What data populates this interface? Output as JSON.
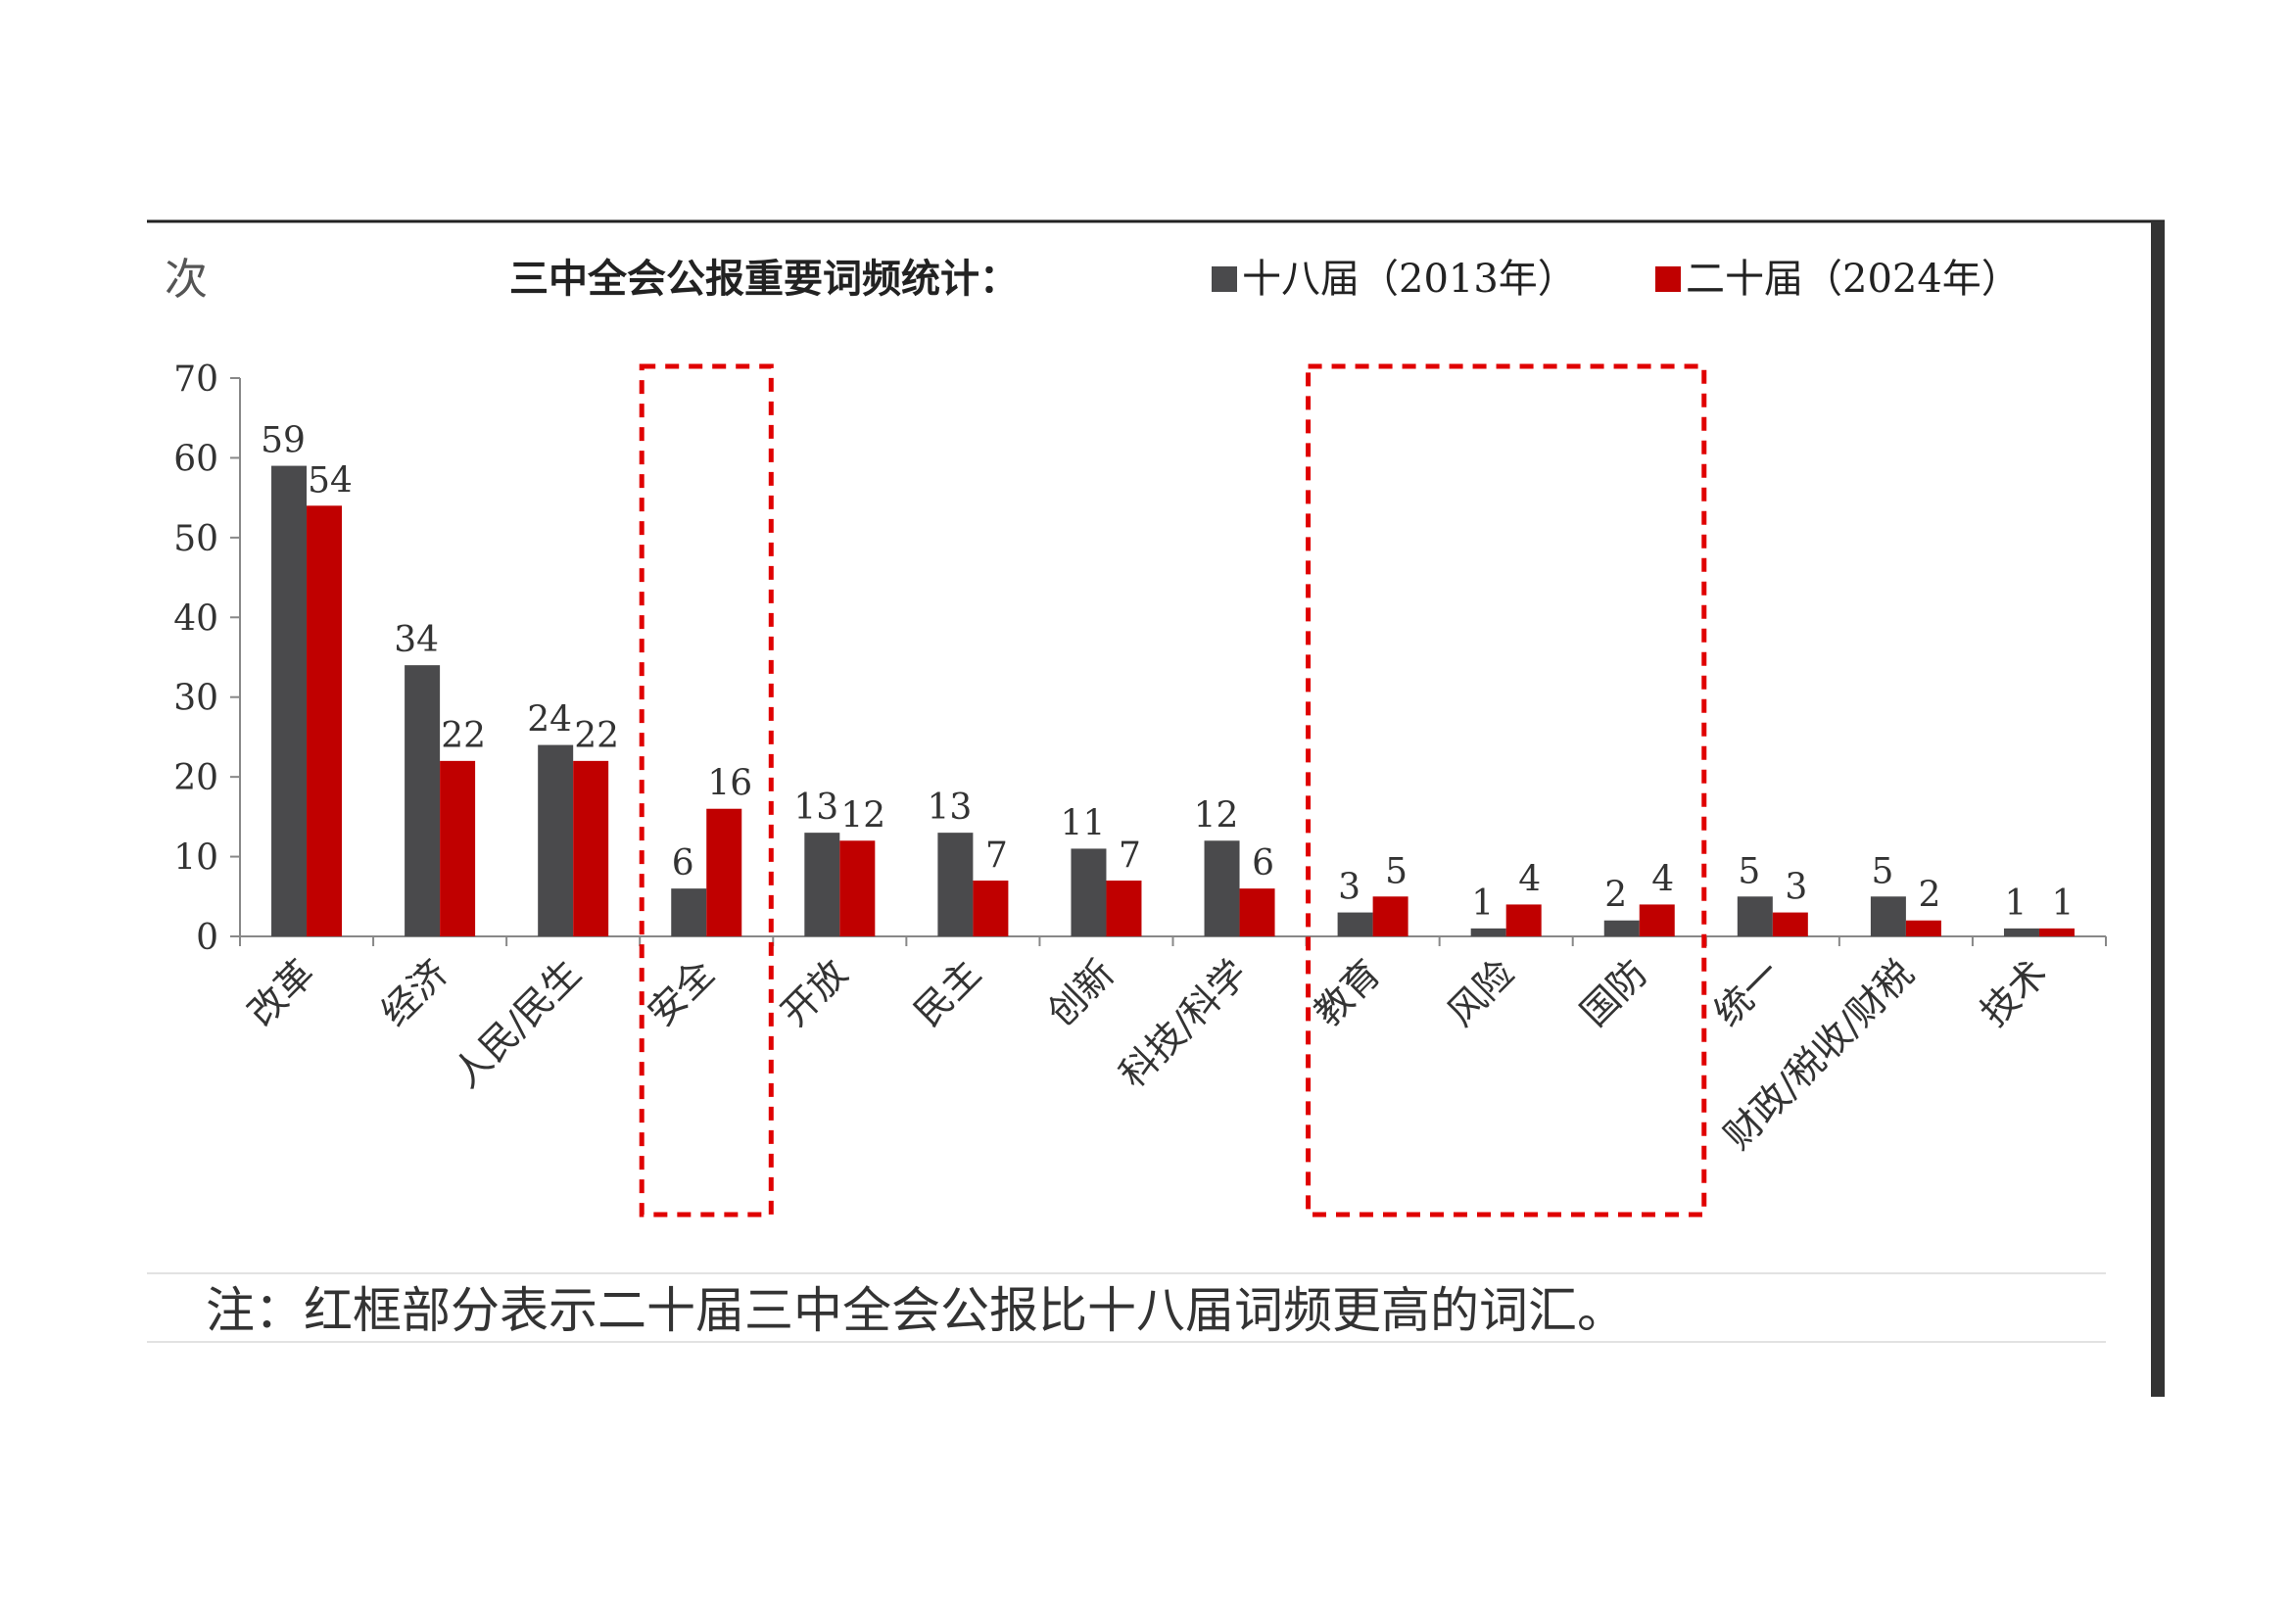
{
  "chart_data": {
    "type": "bar",
    "title": "三中全会公报重要词频统计：",
    "ylabel": "次",
    "xlabel": "",
    "ylim": [
      0,
      70
    ],
    "yticks": [
      0,
      10,
      20,
      30,
      40,
      50,
      60,
      70
    ],
    "categories": [
      "改革",
      "经济",
      "人民/民生",
      "安全",
      "开放",
      "民主",
      "创新",
      "科技/科学",
      "教育",
      "风险",
      "国防",
      "统一",
      "财政/税收/财税",
      "技术"
    ],
    "series": [
      {
        "name": "十八届（2013年）",
        "color": "#4a4a4c",
        "values": [
          59,
          34,
          24,
          6,
          13,
          13,
          11,
          12,
          3,
          1,
          2,
          5,
          5,
          1
        ]
      },
      {
        "name": "二十届（2024年）",
        "color": "#c00000",
        "values": [
          54,
          22,
          22,
          16,
          12,
          7,
          7,
          6,
          5,
          4,
          4,
          3,
          2,
          1
        ]
      }
    ],
    "highlight_boxes": [
      {
        "categories": [
          "安全"
        ],
        "color": "#e00000",
        "style": "dashed"
      },
      {
        "categories": [
          "教育",
          "风险",
          "国防"
        ],
        "color": "#e00000",
        "style": "dashed"
      }
    ],
    "legend_position": "top-right",
    "grid": false
  },
  "note": "注：红框部分表示二十届三中全会公报比十八届词频更高的词汇。"
}
